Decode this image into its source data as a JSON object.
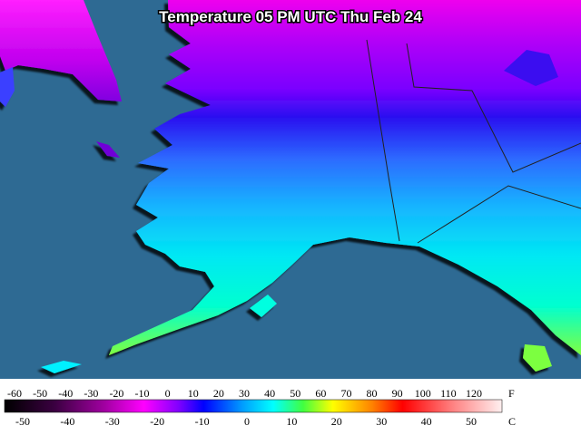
{
  "title": "Temperature 05 PM UTC Thu Feb 24",
  "legend": {
    "fahrenheit": {
      "unit": "F",
      "ticks": [
        -60,
        -50,
        -40,
        -30,
        -20,
        -10,
        0,
        10,
        20,
        30,
        40,
        50,
        60,
        70,
        80,
        90,
        100,
        110,
        120
      ]
    },
    "celsius": {
      "unit": "C",
      "ticks": [
        -50,
        -40,
        -30,
        -20,
        -10,
        0,
        10,
        20,
        30,
        40,
        50
      ]
    }
  }
}
